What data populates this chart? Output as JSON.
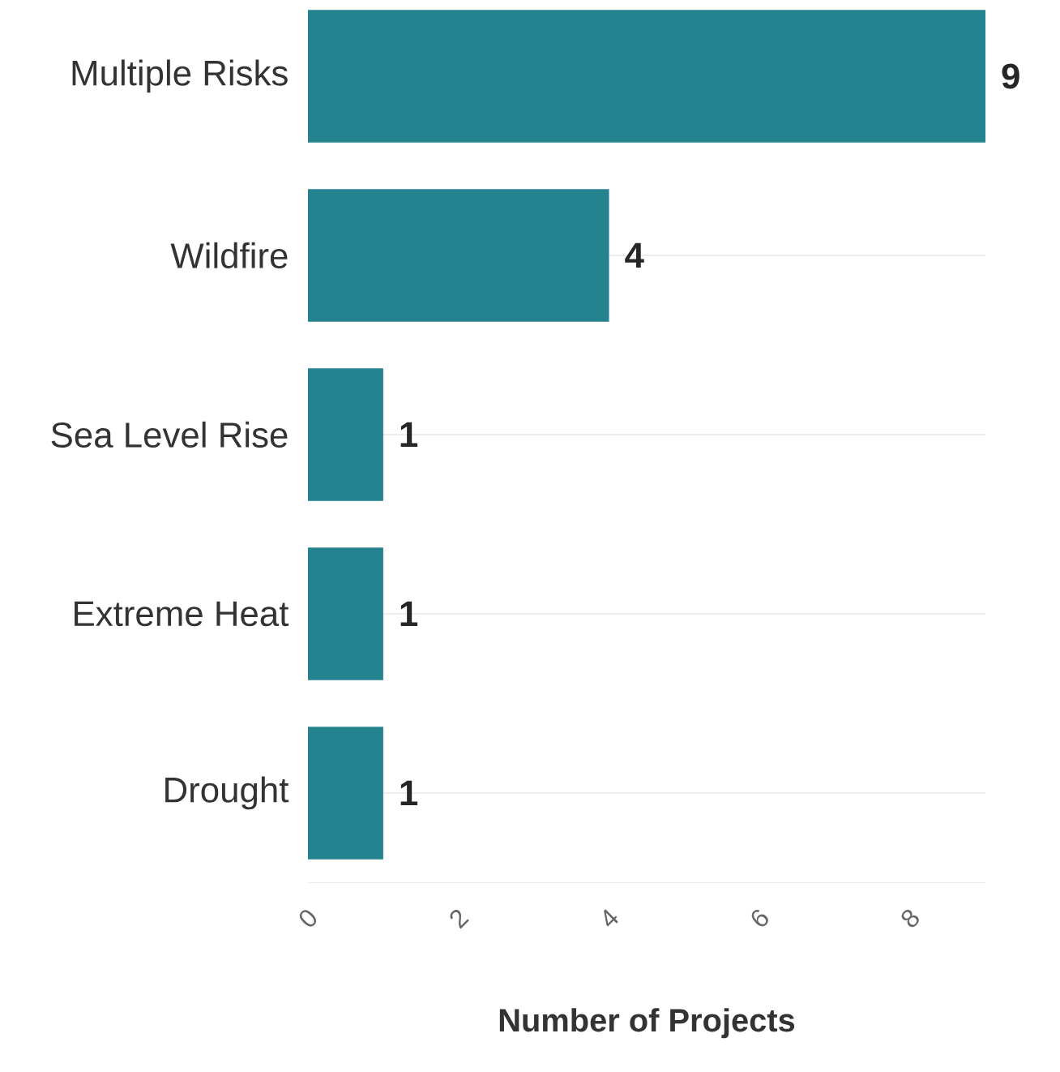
{
  "chart_data": {
    "type": "bar",
    "orientation": "horizontal",
    "xlabel": "Number of Projects",
    "categories": [
      "Multiple Risks",
      "Wildfire",
      "Sea Level Rise",
      "Extreme Heat",
      "Drought"
    ],
    "values": [
      9,
      4,
      1,
      1,
      1
    ],
    "color": "#24838f",
    "xlim": [
      0,
      9
    ],
    "xticks": [
      0,
      2,
      4,
      6,
      8
    ],
    "grid": "y",
    "data_labels": true
  }
}
